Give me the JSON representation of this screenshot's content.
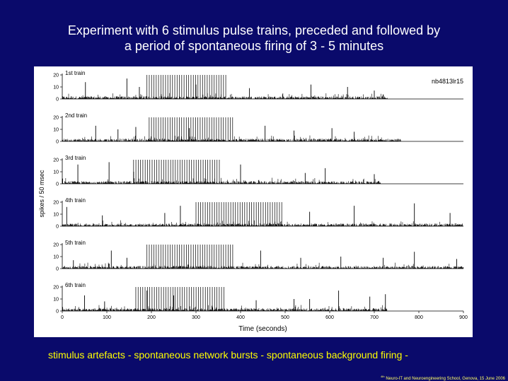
{
  "slide": {
    "title_line1": "Experiment with 6 stimulus pulse trains, preceded and followed by",
    "title_line2": "a period of spontaneous firing of 3 - 5 minutes",
    "caption": "stimulus artefacts - spontaneous network bursts - spontaneous background firing -",
    "footer_sup": "4th",
    "footer": "Neuro-IT and Neuroengineering School, Genova, 15 June 2006"
  },
  "colors": {
    "background": "#0a0a6b",
    "title": "#ffffff",
    "caption": "#ffff00",
    "trace": "#000000",
    "artefact": "#888888"
  },
  "chart_data": {
    "type": "bar",
    "identifier": "nb4813lr15",
    "xlabel": "Time (seconds)",
    "ylabel": "spikes / 50 msec",
    "xlim": [
      0,
      900
    ],
    "ylim": [
      0,
      20
    ],
    "x_ticks": [
      0,
      100,
      200,
      300,
      400,
      500,
      600,
      700,
      800,
      900
    ],
    "y_ticks": [
      0,
      10,
      20
    ],
    "panels": [
      {
        "name": "1st train",
        "record_end": 730,
        "stim_start": 190,
        "stim_end": 370,
        "bursts": [
          [
            52,
            14
          ],
          [
            145,
            17
          ],
          [
            173,
            10
          ],
          [
            420,
            9
          ],
          [
            558,
            12
          ],
          [
            640,
            10
          ],
          [
            700,
            7
          ],
          [
            300,
            12
          ]
        ]
      },
      {
        "name": "2nd  train",
        "record_end": 760,
        "stim_start": 195,
        "stim_end": 385,
        "bursts": [
          [
            75,
            13
          ],
          [
            125,
            10
          ],
          [
            165,
            12
          ],
          [
            455,
            13
          ],
          [
            520,
            9
          ],
          [
            605,
            11
          ],
          [
            655,
            8
          ],
          [
            285,
            11
          ]
        ]
      },
      {
        "name": "3rd train",
        "record_end": 715,
        "stim_start": 160,
        "stim_end": 355,
        "bursts": [
          [
            35,
            16
          ],
          [
            105,
            18
          ],
          [
            160,
            10
          ],
          [
            400,
            16
          ],
          [
            545,
            9
          ],
          [
            590,
            13
          ],
          [
            700,
            8
          ]
        ]
      },
      {
        "name": "4th train",
        "record_end": 900,
        "stim_start": 300,
        "stim_end": 495,
        "bursts": [
          [
            10,
            16
          ],
          [
            90,
            9
          ],
          [
            230,
            11
          ],
          [
            265,
            17
          ],
          [
            555,
            12
          ],
          [
            655,
            17
          ],
          [
            790,
            19
          ],
          [
            870,
            11
          ]
        ]
      },
      {
        "name": "5th train",
        "record_end": 900,
        "stim_start": 190,
        "stim_end": 385,
        "bursts": [
          [
            25,
            7
          ],
          [
            110,
            15
          ],
          [
            145,
            9
          ],
          [
            445,
            15
          ],
          [
            535,
            9
          ],
          [
            625,
            10
          ],
          [
            720,
            9
          ],
          [
            790,
            14
          ],
          [
            885,
            8
          ]
        ]
      },
      {
        "name": "6th train",
        "record_end": 730,
        "stim_start": 165,
        "stim_end": 365,
        "bursts": [
          [
            50,
            13
          ],
          [
            95,
            8
          ],
          [
            190,
            17
          ],
          [
            250,
            13
          ],
          [
            435,
            9
          ],
          [
            520,
            10
          ],
          [
            555,
            10
          ],
          [
            620,
            17
          ],
          [
            690,
            12
          ],
          [
            725,
            14
          ]
        ]
      }
    ]
  }
}
